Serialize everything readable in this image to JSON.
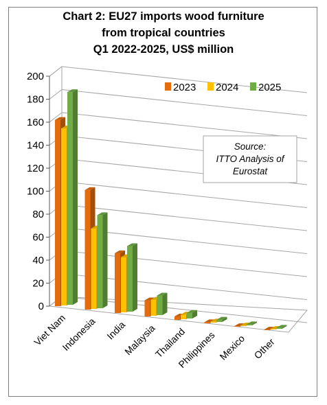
{
  "chart_data": {
    "type": "bar",
    "title_lines": [
      "Chart 2: EU27 imports wood furniture",
      "from tropical countries",
      "Q1 2022-2025, US$ million"
    ],
    "categories": [
      "Viet Nam",
      "Indonesia",
      "India",
      "Malaysia",
      "Thailand",
      "Philippines",
      "Mexico",
      "Other"
    ],
    "series": [
      {
        "name": "2023",
        "values": [
          162,
          104,
          52,
          14,
          3,
          1,
          0.5,
          0.5
        ]
      },
      {
        "name": "2024",
        "values": [
          154,
          70,
          48,
          14,
          4,
          1,
          0.5,
          0.5
        ]
      },
      {
        "name": "2025",
        "values": [
          185,
          81,
          57,
          17,
          5,
          2,
          1,
          1
        ]
      }
    ],
    "yticks": [
      "0",
      "20",
      "40",
      "60",
      "80",
      "100",
      "120",
      "140",
      "160",
      "180",
      "200"
    ],
    "ylim": [
      0,
      200
    ],
    "grid": true,
    "legend_position": "top-right",
    "colors": {
      "2023": "#e46c0a",
      "2024": "#ffc000",
      "2025": "#70ad47"
    },
    "annotation": {
      "lines": [
        "Source:",
        "ITTO Analysis of",
        "Eurostat"
      ]
    }
  }
}
